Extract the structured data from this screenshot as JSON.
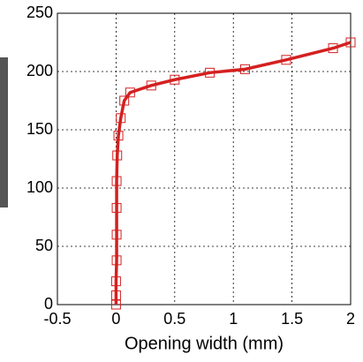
{
  "chart_data": {
    "type": "line",
    "xlabel": "Opening width (mm)",
    "x": [
      0,
      0,
      0,
      0.005,
      0.005,
      0.005,
      0.005,
      0.01,
      0.02,
      0.04,
      0.07,
      0.12,
      0.3,
      0.5,
      0.8,
      1.1,
      1.45,
      1.85,
      2.0
    ],
    "series": [
      {
        "color": "#d42020",
        "values": [
          0,
          8,
          20,
          38,
          60,
          83,
          106,
          128,
          145,
          160,
          175,
          182,
          188,
          193,
          199,
          202,
          210,
          220,
          225
        ]
      }
    ],
    "xlim": [
      -0.5,
      2
    ],
    "xticks": [
      -0.5,
      0,
      0.5,
      1,
      1.5,
      2
    ],
    "ylim": [
      0,
      250
    ],
    "yticks": [
      0,
      50,
      100,
      150,
      200,
      250
    ],
    "grid": true
  }
}
